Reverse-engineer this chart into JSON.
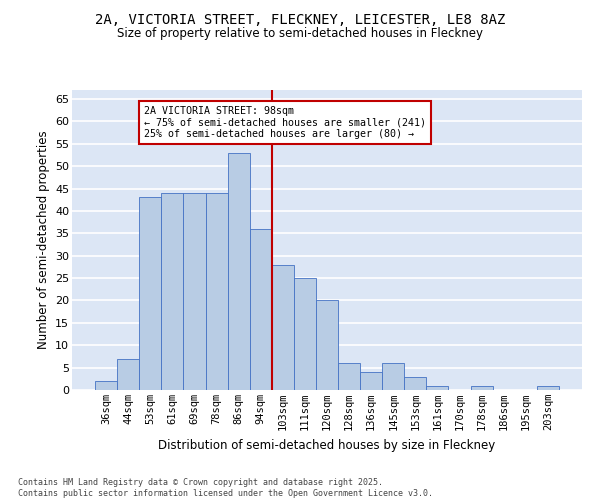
{
  "title1": "2A, VICTORIA STREET, FLECKNEY, LEICESTER, LE8 8AZ",
  "title2": "Size of property relative to semi-detached houses in Fleckney",
  "xlabel": "Distribution of semi-detached houses by size in Fleckney",
  "ylabel": "Number of semi-detached properties",
  "categories": [
    "36sqm",
    "44sqm",
    "53sqm",
    "61sqm",
    "69sqm",
    "78sqm",
    "86sqm",
    "94sqm",
    "103sqm",
    "111sqm",
    "120sqm",
    "128sqm",
    "136sqm",
    "145sqm",
    "153sqm",
    "161sqm",
    "170sqm",
    "178sqm",
    "186sqm",
    "195sqm",
    "203sqm"
  ],
  "values": [
    2,
    7,
    43,
    44,
    44,
    44,
    53,
    36,
    28,
    25,
    20,
    6,
    4,
    6,
    3,
    1,
    0,
    1,
    0,
    0,
    1
  ],
  "bar_color": "#b8cce4",
  "bar_edge_color": "#4472c4",
  "vline_x": 7.5,
  "vline_color": "#c00000",
  "annotation_text": "2A VICTORIA STREET: 98sqm\n← 75% of semi-detached houses are smaller (241)\n25% of semi-detached houses are larger (80) →",
  "box_color": "#c00000",
  "ylim": [
    0,
    67
  ],
  "yticks": [
    0,
    5,
    10,
    15,
    20,
    25,
    30,
    35,
    40,
    45,
    50,
    55,
    60,
    65
  ],
  "bg_color": "#dce6f5",
  "grid_color": "#ffffff",
  "footnote": "Contains HM Land Registry data © Crown copyright and database right 2025.\nContains public sector information licensed under the Open Government Licence v3.0."
}
